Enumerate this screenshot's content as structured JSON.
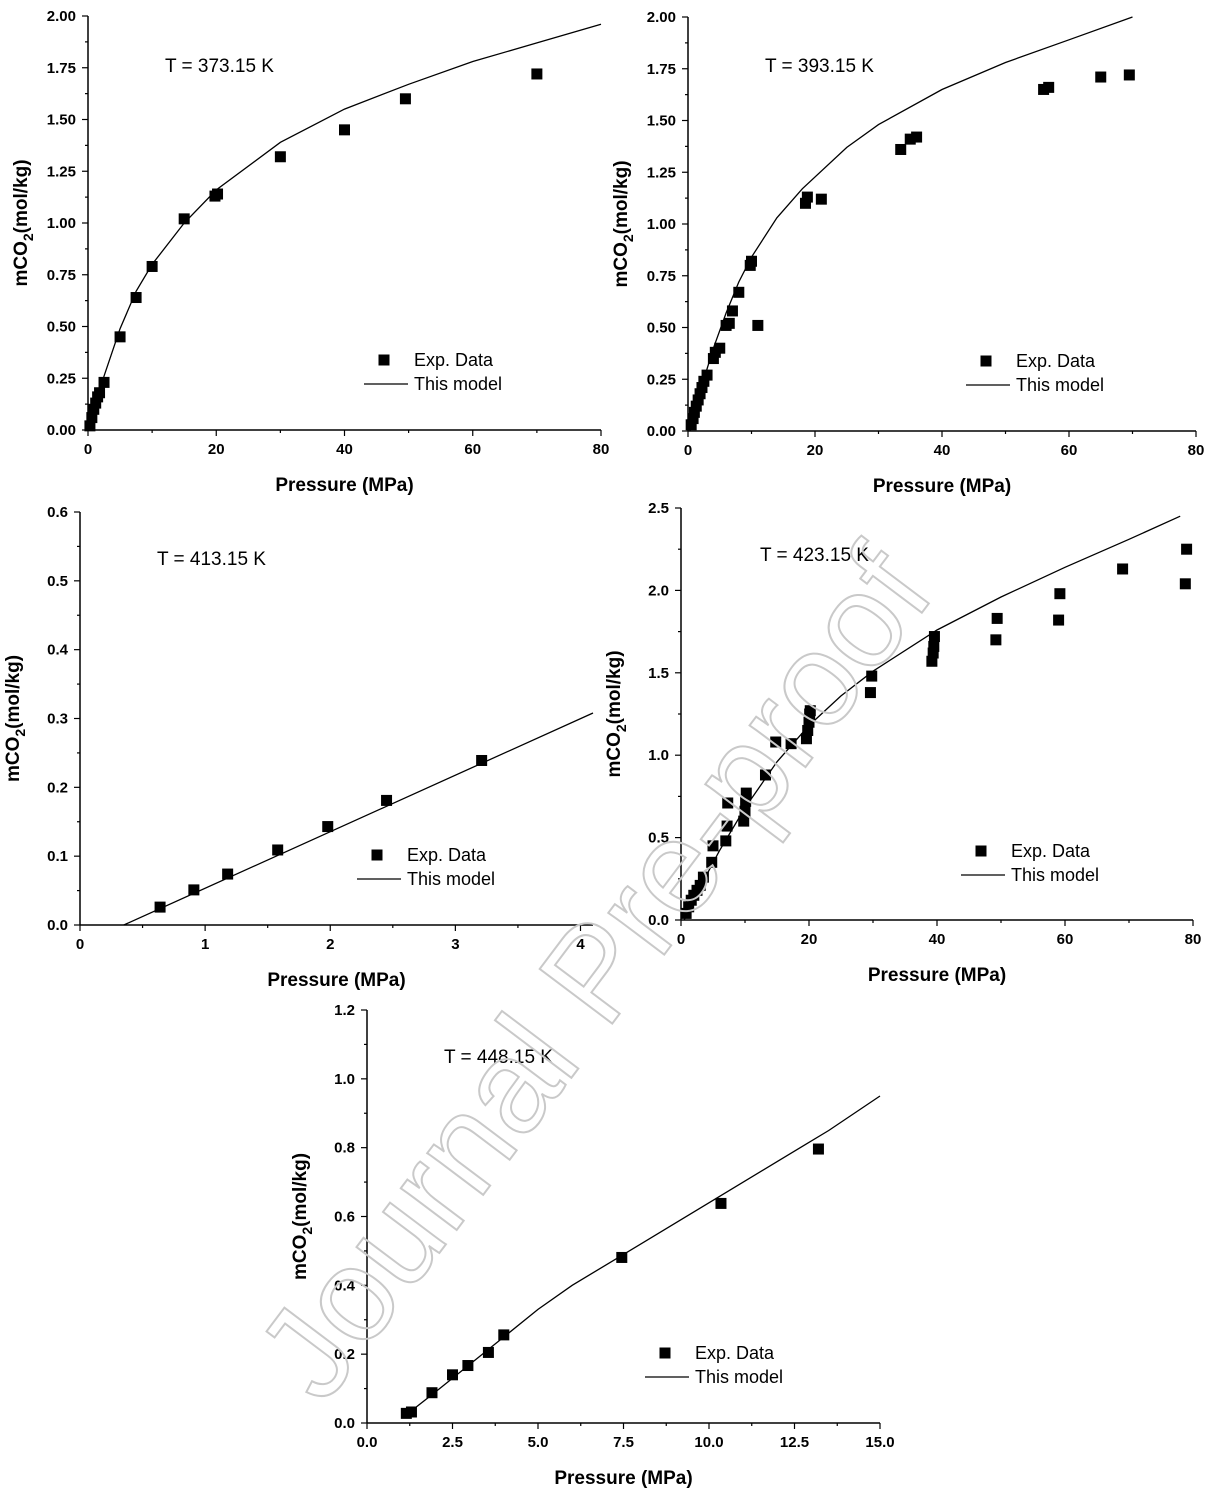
{
  "watermark": "Journal Pre-proof",
  "chart_data": [
    {
      "type": "scatter",
      "annotation": "T = 373.15 K",
      "xlabel": "Pressure (MPa)",
      "ylabel": "mCO2(mol/kg)",
      "xlim": [
        0,
        80
      ],
      "ylim": [
        0,
        2.0
      ],
      "xticks": [
        0,
        20,
        40,
        60,
        80
      ],
      "xtick_labels": [
        "0",
        "20",
        "40",
        "60",
        "80"
      ],
      "yticks": [
        0,
        0.25,
        0.5,
        0.75,
        1.0,
        1.25,
        1.5,
        1.75,
        2.0
      ],
      "ytick_labels": [
        "0.00",
        "0.25",
        "0.50",
        "0.75",
        "1.00",
        "1.25",
        "1.50",
        "1.75",
        "2.00"
      ],
      "legend": [
        "Exp. Data",
        "This model"
      ],
      "series": [
        {
          "name": "Exp. Data",
          "kind": "points",
          "x": [
            0.3,
            0.6,
            0.9,
            1.2,
            1.5,
            1.8,
            2.5,
            5.0,
            7.5,
            10.0,
            15.0,
            19.8,
            20.2,
            30.0,
            40.0,
            49.5,
            70.0
          ],
          "y": [
            0.02,
            0.06,
            0.1,
            0.13,
            0.16,
            0.18,
            0.23,
            0.45,
            0.64,
            0.79,
            1.02,
            1.13,
            1.14,
            1.32,
            1.45,
            1.6,
            1.72
          ]
        },
        {
          "name": "This model",
          "kind": "line",
          "x": [
            0.3,
            2.5,
            5,
            7.5,
            10,
            15,
            20,
            30,
            40,
            50,
            60,
            70,
            80
          ],
          "y": [
            0.0,
            0.26,
            0.49,
            0.67,
            0.8,
            1.0,
            1.16,
            1.39,
            1.55,
            1.67,
            1.78,
            1.87,
            1.96
          ]
        }
      ]
    },
    {
      "type": "scatter",
      "annotation": "T = 393.15 K",
      "xlabel": "Pressure (MPa)",
      "ylabel": "mCO2(mol/kg)",
      "xlim": [
        0,
        80
      ],
      "ylim": [
        0,
        2.0
      ],
      "xticks": [
        0,
        20,
        40,
        60,
        80
      ],
      "xtick_labels": [
        "0",
        "20",
        "40",
        "60",
        "80"
      ],
      "yticks": [
        0,
        0.25,
        0.5,
        0.75,
        1.0,
        1.25,
        1.5,
        1.75,
        2.0
      ],
      "ytick_labels": [
        "0.00",
        "0.25",
        "0.50",
        "0.75",
        "1.00",
        "1.25",
        "1.50",
        "1.75",
        "2.00"
      ],
      "legend": [
        "Exp. Data",
        "This model"
      ],
      "series": [
        {
          "name": "Exp. Data",
          "kind": "points",
          "x": [
            0.5,
            0.8,
            1.0,
            1.3,
            1.6,
            1.9,
            2.2,
            2.5,
            3.0,
            4.0,
            4.3,
            5.0,
            6.0,
            6.5,
            7.0,
            8.0,
            9.8,
            10.0,
            11.0,
            18.5,
            18.8,
            21.0,
            33.5,
            35.0,
            36.0,
            56.0,
            56.8,
            65.0,
            69.5
          ],
          "y": [
            0.03,
            0.06,
            0.09,
            0.12,
            0.15,
            0.18,
            0.21,
            0.24,
            0.27,
            0.35,
            0.38,
            0.4,
            0.51,
            0.52,
            0.58,
            0.67,
            0.8,
            0.82,
            0.51,
            1.1,
            1.13,
            1.12,
            1.36,
            1.41,
            1.42,
            1.65,
            1.66,
            1.71,
            1.72
          ]
        },
        {
          "name": "This model",
          "kind": "line",
          "x": [
            0.3,
            2,
            4,
            6,
            8,
            10,
            14,
            18,
            25,
            30,
            40,
            50,
            60,
            70
          ],
          "y": [
            0.0,
            0.2,
            0.4,
            0.57,
            0.72,
            0.84,
            1.03,
            1.17,
            1.37,
            1.48,
            1.65,
            1.78,
            1.89,
            2.0
          ]
        }
      ]
    },
    {
      "type": "scatter",
      "annotation": "T = 413.15 K",
      "xlabel": "Pressure (MPa)",
      "ylabel": "mCO2(mol/kg)",
      "xlim": [
        0,
        4.1
      ],
      "ylim": [
        0,
        0.6
      ],
      "xticks": [
        0,
        1,
        2,
        3,
        4
      ],
      "xtick_labels": [
        "0",
        "1",
        "2",
        "3",
        "4"
      ],
      "yticks": [
        0,
        0.1,
        0.2,
        0.3,
        0.4,
        0.5,
        0.6
      ],
      "ytick_labels": [
        "0.0",
        "0.1",
        "0.2",
        "0.3",
        "0.4",
        "0.5",
        "0.6"
      ],
      "legend": [
        "Exp. Data",
        "This model"
      ],
      "series": [
        {
          "name": "Exp. Data",
          "kind": "points",
          "x": [
            0.64,
            0.91,
            1.18,
            1.58,
            1.98,
            2.45,
            3.21
          ],
          "y": [
            0.026,
            0.051,
            0.074,
            0.109,
            0.143,
            0.181,
            0.239
          ]
        },
        {
          "name": "This model",
          "kind": "line",
          "x": [
            0.35,
            4.1
          ],
          "y": [
            0.0,
            0.308
          ]
        }
      ]
    },
    {
      "type": "scatter",
      "annotation": "T = 423.15 K",
      "xlabel": "Pressure (MPa)",
      "ylabel": "mCO2(mol/kg)",
      "xlim": [
        0,
        80
      ],
      "ylim": [
        0,
        2.5
      ],
      "xticks": [
        0,
        20,
        40,
        60,
        80
      ],
      "xtick_labels": [
        "0",
        "20",
        "40",
        "60",
        "80"
      ],
      "yticks": [
        0,
        0.5,
        1.0,
        1.5,
        2.0,
        2.5
      ],
      "ytick_labels": [
        "0.0",
        "0.5",
        "1.0",
        "1.5",
        "2.0",
        "2.5"
      ],
      "legend": [
        "Exp. Data",
        "This model"
      ],
      "series": [
        {
          "name": "Exp. Data",
          "kind": "points",
          "x": [
            0.8,
            1.2,
            1.6,
            2.0,
            2.5,
            3.0,
            3.5,
            4.8,
            5.0,
            7.0,
            7.2,
            7.3,
            9.8,
            10.0,
            10.1,
            10.2,
            13.2,
            14.8,
            17.2,
            19.6,
            19.8,
            20.0,
            20.1,
            20.2,
            29.6,
            29.8,
            39.2,
            39.4,
            39.5,
            39.6,
            49.2,
            49.4,
            59.0,
            59.2,
            69.0,
            78.8,
            79.0
          ],
          "y": [
            0.04,
            0.08,
            0.12,
            0.15,
            0.18,
            0.21,
            0.26,
            0.35,
            0.45,
            0.48,
            0.57,
            0.71,
            0.6,
            0.66,
            0.72,
            0.77,
            0.88,
            1.08,
            1.07,
            1.1,
            1.15,
            1.2,
            1.25,
            1.27,
            1.38,
            1.48,
            1.57,
            1.62,
            1.66,
            1.72,
            1.7,
            1.83,
            1.82,
            1.98,
            2.13,
            2.04,
            2.25
          ]
        },
        {
          "name": "This model",
          "kind": "line",
          "x": [
            0.5,
            3,
            6,
            10,
            15,
            20,
            25,
            30,
            40,
            50,
            60,
            70,
            78
          ],
          "y": [
            0.0,
            0.2,
            0.42,
            0.68,
            0.96,
            1.18,
            1.36,
            1.51,
            1.76,
            1.96,
            2.14,
            2.31,
            2.45
          ]
        }
      ]
    },
    {
      "type": "scatter",
      "annotation": "T = 448.15 K",
      "xlabel": "Pressure (MPa)",
      "ylabel": "mCO2(mol/kg)",
      "xlim": [
        0,
        15
      ],
      "ylim": [
        0,
        1.2
      ],
      "xticks": [
        0,
        2.5,
        5,
        7.5,
        10,
        12.5,
        15
      ],
      "xtick_labels": [
        "0.0",
        "2.5",
        "5.0",
        "7.5",
        "10.0",
        "12.5",
        "15.0"
      ],
      "yticks": [
        0,
        0.2,
        0.4,
        0.6,
        0.8,
        1.0,
        1.2
      ],
      "ytick_labels": [
        "0.0",
        "0.2",
        "0.4",
        "0.6",
        "0.8",
        "1.0",
        "1.2"
      ],
      "legend": [
        "Exp. Data",
        "This model"
      ],
      "series": [
        {
          "name": "Exp. Data",
          "kind": "points",
          "x": [
            1.15,
            1.3,
            1.9,
            2.5,
            2.95,
            3.55,
            4.0,
            7.45,
            10.35,
            13.2
          ],
          "y": [
            0.028,
            0.032,
            0.088,
            0.14,
            0.167,
            0.205,
            0.256,
            0.481,
            0.638,
            0.796
          ]
        },
        {
          "name": "This model",
          "kind": "line",
          "x": [
            1.1,
            2,
            3,
            4,
            5,
            6,
            7.5,
            9,
            10.5,
            12,
            13.5,
            15
          ],
          "y": [
            0.02,
            0.09,
            0.17,
            0.25,
            0.33,
            0.4,
            0.49,
            0.58,
            0.67,
            0.76,
            0.85,
            0.95
          ]
        }
      ]
    }
  ]
}
